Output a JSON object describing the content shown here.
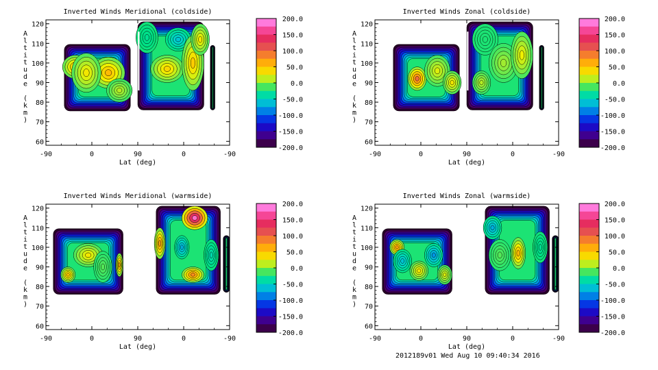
{
  "chart_data": [
    {
      "type": "heatmap",
      "title": "Inverted Winds Meridional (coldside)",
      "xlabel": "Lat (deg)",
      "ylabel": "Altitude (km)",
      "x_tick_labels": [
        "-90",
        "0",
        "90",
        "0",
        "-90"
      ],
      "y_ticks": [
        60,
        70,
        80,
        90,
        100,
        110,
        120
      ],
      "ylim": [
        58,
        122
      ],
      "colorbar": {
        "ticks": [
          "200.0",
          "150.0",
          "100.0",
          "50.0",
          "0.0",
          "-50.0",
          "-100.0",
          "-150.0",
          "-200.0"
        ],
        "range": [
          -200,
          200
        ]
      },
      "blocks": [
        {
          "x0": 0.1,
          "x1": 0.46,
          "y0": 75.5,
          "y1": 109.5,
          "blobs": [
            {
              "x": 0.16,
              "y": 98,
              "value": 50,
              "w": 0.07,
              "h": 6
            },
            {
              "x": 0.34,
              "y": 95,
              "value": 55,
              "w": 0.09,
              "h": 8
            },
            {
              "x": 0.22,
              "y": 95,
              "value": 30,
              "w": 0.08,
              "h": 10
            },
            {
              "x": 0.4,
              "y": 86,
              "value": 10,
              "w": 0.07,
              "h": 6
            }
          ]
        },
        {
          "x0": 0.5,
          "x1": 0.86,
          "y0": 76,
          "y1": 121,
          "blobs": [
            {
              "x": 0.55,
              "y": 113,
              "value": -30,
              "w": 0.06,
              "h": 8
            },
            {
              "x": 0.72,
              "y": 112,
              "value": -60,
              "w": 0.07,
              "h": 6
            },
            {
              "x": 0.66,
              "y": 97,
              "value": 40,
              "w": 0.09,
              "h": 7
            },
            {
              "x": 0.8,
              "y": 100,
              "value": 45,
              "w": 0.06,
              "h": 14
            },
            {
              "x": 0.84,
              "y": 112,
              "value": 30,
              "w": 0.05,
              "h": 8
            }
          ]
        },
        {
          "x0": 0.895,
          "x1": 0.92,
          "y0": 76,
          "y1": 109,
          "blobs": []
        }
      ],
      "gaps": [
        {
          "x": 0.505,
          "y0": 86,
          "y1": 116
        }
      ]
    },
    {
      "type": "heatmap",
      "title": "Inverted Winds Zonal (coldside)",
      "xlabel": "Lat (deg)",
      "ylabel": "Altitude (km)",
      "x_tick_labels": [
        "-90",
        "0",
        "90",
        "0",
        "-90"
      ],
      "y_ticks": [
        60,
        70,
        80,
        90,
        100,
        110,
        120
      ],
      "ylim": [
        58,
        122
      ],
      "colorbar": {
        "ticks": [
          "200.0",
          "150.0",
          "100.0",
          "50.0",
          "0.0",
          "-50.0",
          "-100.0",
          "-150.0",
          "-200.0"
        ],
        "range": [
          -200,
          200
        ]
      },
      "blocks": [
        {
          "x0": 0.1,
          "x1": 0.46,
          "y0": 75.5,
          "y1": 109.5,
          "blobs": [
            {
              "x": 0.23,
              "y": 92,
              "value": 95,
              "w": 0.05,
              "h": 6
            },
            {
              "x": 0.34,
              "y": 96,
              "value": 20,
              "w": 0.07,
              "h": 8
            },
            {
              "x": 0.42,
              "y": 90,
              "value": 30,
              "w": 0.05,
              "h": 6
            }
          ]
        },
        {
          "x0": 0.5,
          "x1": 0.86,
          "y0": 76,
          "y1": 121,
          "blobs": [
            {
              "x": 0.6,
              "y": 112,
              "value": -20,
              "w": 0.07,
              "h": 8
            },
            {
              "x": 0.7,
              "y": 100,
              "value": 5,
              "w": 0.08,
              "h": 10
            },
            {
              "x": 0.8,
              "y": 104,
              "value": 25,
              "w": 0.06,
              "h": 12
            },
            {
              "x": 0.58,
              "y": 90,
              "value": 10,
              "w": 0.05,
              "h": 6
            }
          ]
        },
        {
          "x0": 0.895,
          "x1": 0.92,
          "y0": 76,
          "y1": 109,
          "blobs": []
        }
      ],
      "gaps": [
        {
          "x": 0.505,
          "y0": 86,
          "y1": 116
        }
      ]
    },
    {
      "type": "heatmap",
      "title": "Inverted Winds Meridional (warmside)",
      "xlabel": "Lat (deg)",
      "ylabel": "Altitude (km)",
      "x_tick_labels": [
        "-90",
        "0",
        "90",
        "0",
        "-90"
      ],
      "y_ticks": [
        60,
        70,
        80,
        90,
        100,
        110,
        120
      ],
      "ylim": [
        58,
        122
      ],
      "colorbar": {
        "ticks": [
          "200.0",
          "150.0",
          "100.0",
          "50.0",
          "0.0",
          "-50.0",
          "-100.0",
          "-150.0",
          "-200.0"
        ],
        "range": [
          -200,
          200
        ]
      },
      "blocks": [
        {
          "x0": 0.04,
          "x1": 0.42,
          "y0": 76,
          "y1": 109.5,
          "blobs": [
            {
              "x": 0.12,
              "y": 86,
              "value": 50,
              "w": 0.04,
              "h": 4
            },
            {
              "x": 0.23,
              "y": 96,
              "value": 30,
              "w": 0.08,
              "h": 6
            },
            {
              "x": 0.4,
              "y": 91,
              "value": 60,
              "w": 0.02,
              "h": 6
            },
            {
              "x": 0.31,
              "y": 90,
              "value": -10,
              "w": 0.05,
              "h": 8
            }
          ]
        },
        {
          "x0": 0.6,
          "x1": 0.95,
          "y0": 76,
          "y1": 121,
          "blobs": [
            {
              "x": 0.81,
              "y": 115,
              "value": 175,
              "w": 0.07,
              "h": 6
            },
            {
              "x": 0.74,
              "y": 100,
              "value": -70,
              "w": 0.04,
              "h": 6
            },
            {
              "x": 0.62,
              "y": 102,
              "value": 70,
              "w": 0.03,
              "h": 8
            },
            {
              "x": 0.9,
              "y": 96,
              "value": -40,
              "w": 0.04,
              "h": 8
            },
            {
              "x": 0.8,
              "y": 86,
              "value": 80,
              "w": 0.06,
              "h": 4
            }
          ]
        },
        {
          "x0": 0.965,
          "x1": 1.0,
          "y0": 77,
          "y1": 106,
          "blobs": []
        }
      ],
      "gaps": []
    },
    {
      "type": "heatmap",
      "title": "Inverted Winds Zonal (warmside)",
      "xlabel": "Lat (deg)",
      "ylabel": "Altitude (km)",
      "x_tick_labels": [
        "-90",
        "0",
        "90",
        "0",
        "-90"
      ],
      "y_ticks": [
        60,
        70,
        80,
        90,
        100,
        110,
        120
      ],
      "ylim": [
        58,
        122
      ],
      "colorbar": {
        "ticks": [
          "200.0",
          "150.0",
          "100.0",
          "50.0",
          "0.0",
          "-50.0",
          "-100.0",
          "-150.0",
          "-200.0"
        ],
        "range": [
          -200,
          200
        ]
      },
      "blocks": [
        {
          "x0": 0.04,
          "x1": 0.42,
          "y0": 76,
          "y1": 109.5,
          "blobs": [
            {
              "x": 0.12,
              "y": 100,
              "value": 70,
              "w": 0.04,
              "h": 4
            },
            {
              "x": 0.15,
              "y": 93,
              "value": -60,
              "w": 0.05,
              "h": 6
            },
            {
              "x": 0.32,
              "y": 96,
              "value": -80,
              "w": 0.05,
              "h": 6
            },
            {
              "x": 0.24,
              "y": 88,
              "value": 30,
              "w": 0.05,
              "h": 5
            },
            {
              "x": 0.38,
              "y": 86,
              "value": 20,
              "w": 0.04,
              "h": 5
            }
          ]
        },
        {
          "x0": 0.6,
          "x1": 0.95,
          "y0": 76,
          "y1": 121,
          "blobs": [
            {
              "x": 0.64,
              "y": 110,
              "value": -70,
              "w": 0.05,
              "h": 6
            },
            {
              "x": 0.78,
              "y": 97,
              "value": 55,
              "w": 0.04,
              "h": 8
            },
            {
              "x": 0.68,
              "y": 96,
              "value": -10,
              "w": 0.06,
              "h": 8
            },
            {
              "x": 0.9,
              "y": 100,
              "value": -30,
              "w": 0.04,
              "h": 8
            }
          ]
        },
        {
          "x0": 0.965,
          "x1": 1.0,
          "y0": 77,
          "y1": 106,
          "blobs": []
        }
      ],
      "gaps": []
    }
  ],
  "footer": {
    "text": "2012189v01 Wed Aug 10 09:40:34 2016"
  }
}
